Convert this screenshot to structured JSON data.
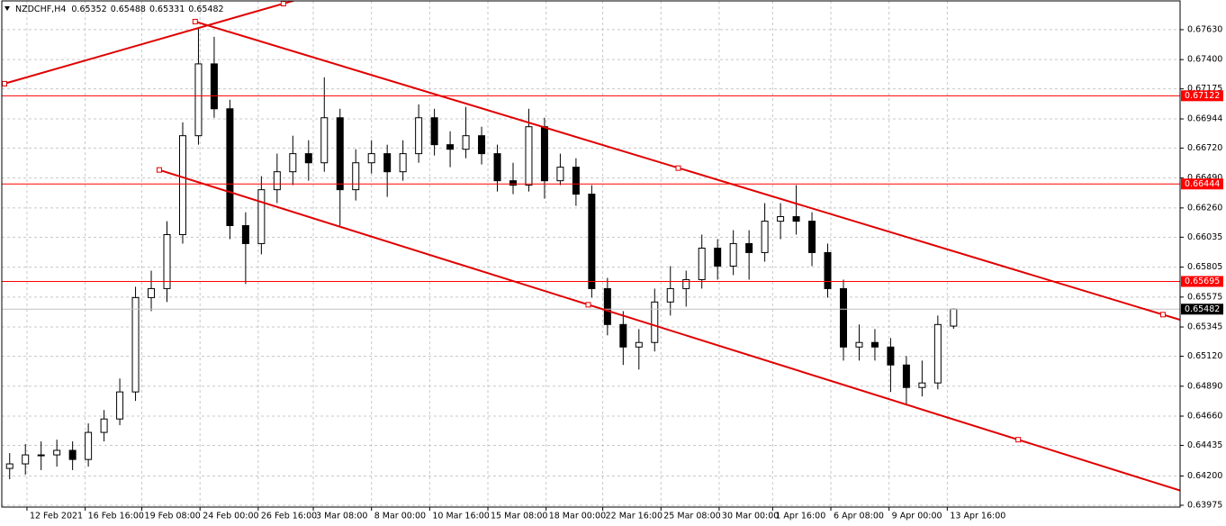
{
  "chart_data": {
    "type": "candlestick",
    "title": "NZDCHF,H4",
    "open": [
      0.64258,
      0.64293,
      0.64362,
      0.64362,
      0.64397,
      0.64327,
      0.64535,
      0.64638,
      0.64846,
      0.65571,
      0.6564,
      0.66055,
      0.66815,
      0.67367,
      0.67022,
      0.66124,
      0.65986,
      0.664,
      0.66538,
      0.66677,
      0.66607,
      0.66953,
      0.664,
      0.66607,
      0.66677,
      0.66538,
      0.66677,
      0.66953,
      0.66746,
      0.66711,
      0.66815,
      0.66677,
      0.66469,
      0.66435,
      0.66884,
      0.66469,
      0.66573,
      0.66366,
      0.6564,
      0.65364,
      0.65191,
      0.65226,
      0.65537,
      0.6564,
      0.65709,
      0.65951,
      0.65813,
      0.65986,
      0.65917,
      0.66158,
      0.66193,
      0.66158,
      0.65917,
      0.6564,
      0.65191,
      0.65226,
      0.65191,
      0.65053,
      0.6488,
      0.64915,
      0.65352
    ],
    "high": [
      0.64376,
      0.64445,
      0.64466,
      0.64479,
      0.64466,
      0.64604,
      0.64707,
      0.64949,
      0.65654,
      0.65778,
      0.66158,
      0.66918,
      0.67644,
      0.67575,
      0.67091,
      0.66227,
      0.66504,
      0.66677,
      0.66815,
      0.6678,
      0.67264,
      0.67022,
      0.66711,
      0.6678,
      0.66746,
      0.6678,
      0.67056,
      0.67022,
      0.66849,
      0.67036,
      0.66884,
      0.66746,
      0.66607,
      0.67022,
      0.66953,
      0.66677,
      0.66642,
      0.66435,
      0.65723,
      0.65467,
      0.65329,
      0.6564,
      0.65813,
      0.65778,
      0.66055,
      0.6602,
      0.66089,
      0.66089,
      0.66297,
      0.66297,
      0.66435,
      0.66227,
      0.65986,
      0.65709,
      0.65364,
      0.65329,
      0.6526,
      0.65122,
      0.65087,
      0.65433,
      0.65488
    ],
    "low": [
      0.64175,
      0.6421,
      0.64245,
      0.64272,
      0.64245,
      0.64272,
      0.64466,
      0.6459,
      0.64777,
      0.65467,
      0.65537,
      0.65986,
      0.66746,
      0.66953,
      0.6602,
      0.65675,
      0.65903,
      0.66297,
      0.66435,
      0.66469,
      0.66538,
      0.66124,
      0.66317,
      0.66524,
      0.66345,
      0.66469,
      0.66607,
      0.66663,
      0.66573,
      0.66642,
      0.66594,
      0.66386,
      0.66366,
      0.66386,
      0.66331,
      0.66435,
      0.66276,
      0.65571,
      0.65281,
      0.65053,
      0.65018,
      0.65157,
      0.65433,
      0.65502,
      0.6564,
      0.65709,
      0.65744,
      0.65709,
      0.65847,
      0.6602,
      0.66055,
      0.65813,
      0.65571,
      0.65087,
      0.65087,
      0.65087,
      0.64846,
      0.64742,
      0.64811,
      0.64866,
      0.65331
    ],
    "close": [
      0.64293,
      0.64362,
      0.64362,
      0.64397,
      0.64327,
      0.64535,
      0.64638,
      0.64846,
      0.65571,
      0.6564,
      0.66055,
      0.66815,
      0.67367,
      0.67022,
      0.66124,
      0.65986,
      0.664,
      0.66538,
      0.66677,
      0.66607,
      0.66953,
      0.664,
      0.66607,
      0.66677,
      0.66538,
      0.66677,
      0.66953,
      0.66746,
      0.66711,
      0.66815,
      0.66677,
      0.66469,
      0.66435,
      0.66884,
      0.66469,
      0.66573,
      0.66366,
      0.6564,
      0.65364,
      0.65191,
      0.65226,
      0.65537,
      0.6564,
      0.65709,
      0.65951,
      0.65813,
      0.65986,
      0.65917,
      0.66158,
      0.66193,
      0.66158,
      0.65917,
      0.6564,
      0.65191,
      0.65226,
      0.65191,
      0.65053,
      0.6488,
      0.64915,
      0.65364,
      0.65482
    ],
    "candle_color": "#000000",
    "up_fill": "#ffffff",
    "down_fill": "#000000",
    "xlim": [
      -0.5,
      74.4
    ],
    "xticks": [
      {
        "value": 1.1,
        "label": "12 Feb 2021"
      },
      {
        "value": 4.8,
        "label": "16 Feb 16:00"
      },
      {
        "value": 8.4,
        "label": "19 Feb 08:00"
      },
      {
        "value": 12.1,
        "label": "24 Feb 00:00"
      },
      {
        "value": 15.8,
        "label": "26 Feb 16:00"
      },
      {
        "value": 19.3,
        "label": "3 Mar 08:00"
      },
      {
        "value": 23.0,
        "label": "8 Mar 00:00"
      },
      {
        "value": 26.7,
        "label": "10 Mar 16:00"
      },
      {
        "value": 30.4,
        "label": "15 Mar 08:00"
      },
      {
        "value": 34.1,
        "label": "18 Mar 00:00"
      },
      {
        "value": 37.7,
        "label": "22 Mar 16:00"
      },
      {
        "value": 41.4,
        "label": "25 Mar 08:00"
      },
      {
        "value": 45.1,
        "label": "30 Mar 00:00"
      },
      {
        "value": 48.5,
        "label": "1 Apr 16:00"
      },
      {
        "value": 52.2,
        "label": "6 Apr 08:00"
      },
      {
        "value": 55.9,
        "label": "9 Apr 00:00"
      },
      {
        "value": 59.6,
        "label": "13 Apr 16:00"
      }
    ],
    "ylim": [
      0.63961,
      0.67851
    ],
    "yticks": [
      {
        "value": 0.6763,
        "label": "0.67630"
      },
      {
        "value": 0.674,
        "label": "0.67400"
      },
      0.67175,
      0.66944,
      {
        "value": 0.6672,
        "label": "0.66720"
      },
      {
        "value": 0.6649,
        "label": "0.66490"
      },
      {
        "value": 0.6626,
        "label": "0.66260"
      },
      0.66035,
      0.65805,
      0.65575,
      0.65345,
      {
        "value": 0.6512,
        "label": "0.65120"
      },
      {
        "value": 0.6489,
        "label": "0.64890"
      },
      {
        "value": 0.6466,
        "label": "0.64660"
      },
      0.64435,
      {
        "value": 0.642,
        "label": "0.64200"
      },
      0.63975
    ],
    "grid": true,
    "hlines": [
      {
        "value": 0.67122,
        "color": "#ff0000"
      },
      {
        "value": 0.66444,
        "color": "#ff0000"
      },
      {
        "value": 0.65695,
        "color": "#ff0000"
      }
    ],
    "trendlines": [
      {
        "color": "#e00000",
        "points": [
          [
            -0.33,
            0.67215
          ],
          [
            17.4,
            0.6783
          ]
        ]
      },
      {
        "color": "#e00000",
        "points": [
          [
            11.79,
            0.67692
          ],
          [
            42.5,
            0.66566
          ],
          [
            73.31,
            0.6544
          ]
        ]
      },
      {
        "color": "#e00000",
        "points": [
          [
            9.51,
            0.66552
          ],
          [
            36.78,
            0.65516
          ],
          [
            64.11,
            0.64479
          ]
        ]
      }
    ]
  }
}
